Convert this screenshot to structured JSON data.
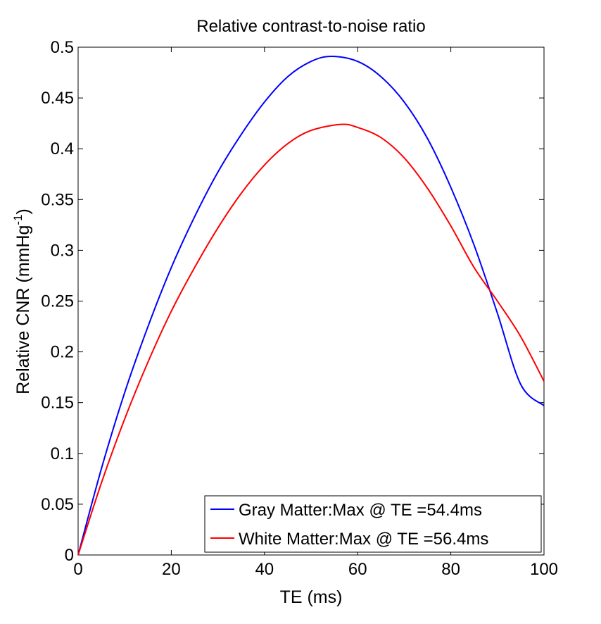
{
  "chart_data": {
    "type": "line",
    "title": "Relative contrast-to-noise ratio",
    "xlabel": "TE (ms)",
    "ylabel_main": "Relative CNR (mmHg",
    "ylabel_sup": "-1",
    "ylabel_close": ")",
    "xlim": [
      0,
      100
    ],
    "ylim": [
      0,
      0.5
    ],
    "xticks": [
      0,
      20,
      40,
      60,
      80,
      100
    ],
    "xtick_labels": [
      "0",
      "20",
      "40",
      "60",
      "80",
      "100"
    ],
    "yticks": [
      0,
      0.05,
      0.1,
      0.15,
      0.2,
      0.25,
      0.3,
      0.35,
      0.4,
      0.45,
      0.5
    ],
    "ytick_labels": [
      "0",
      "0.05",
      "0.1",
      "0.15",
      "0.2",
      "0.25",
      "0.3",
      "0.35",
      "0.4",
      "0.45",
      "0.5"
    ],
    "legend_position": "bottom-right",
    "series": [
      {
        "name": "Gray Matter:Max @ TE =54.4ms",
        "color": "#0000ff",
        "x": [
          0,
          5,
          10,
          15,
          20,
          25,
          30,
          35,
          40,
          45,
          50,
          54.4,
          60,
          65,
          70,
          75,
          80,
          85,
          90,
          95,
          100
        ],
        "y": [
          0,
          0.085,
          0.16,
          0.225,
          0.283,
          0.333,
          0.377,
          0.414,
          0.446,
          0.471,
          0.486,
          0.491,
          0.486,
          0.471,
          0.446,
          0.41,
          0.362,
          0.305,
          0.238,
          0.168,
          0.147
        ]
      },
      {
        "name": "White Matter:Max @ TE =56.4ms",
        "color": "#ff0000",
        "x": [
          0,
          5,
          10,
          15,
          20,
          25,
          30,
          35,
          40,
          45,
          50,
          56.4,
          60,
          65,
          70,
          75,
          80,
          85,
          90,
          95,
          100
        ],
        "y": [
          0,
          0.071,
          0.134,
          0.19,
          0.24,
          0.283,
          0.322,
          0.356,
          0.384,
          0.405,
          0.418,
          0.424,
          0.421,
          0.411,
          0.391,
          0.361,
          0.324,
          0.283,
          0.25,
          0.215,
          0.171
        ]
      }
    ]
  }
}
